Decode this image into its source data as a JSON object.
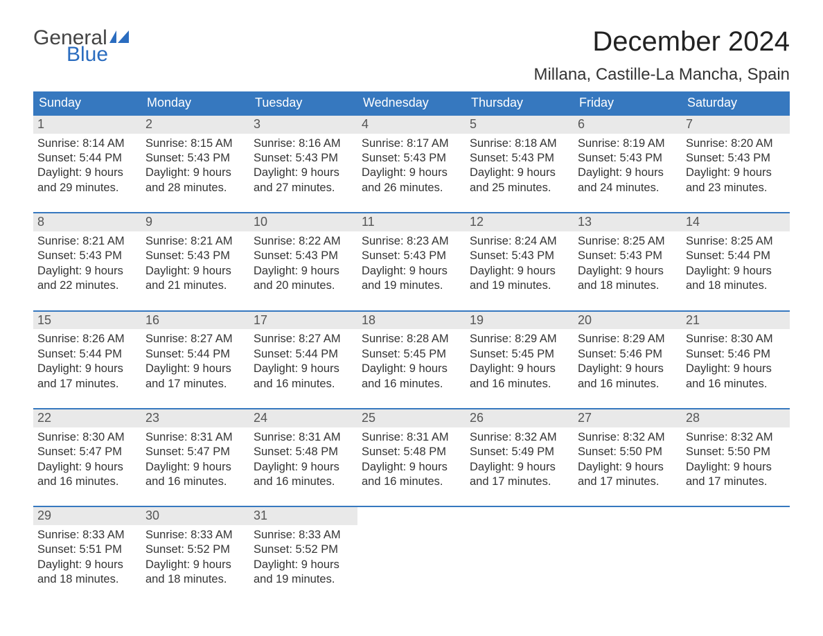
{
  "brand": {
    "part1": "General",
    "part2": "Blue"
  },
  "title": "December 2024",
  "location": "Millana, Castille-La Mancha, Spain",
  "theme": {
    "header_bg": "#3678bf",
    "header_text": "#ffffff",
    "week_rule": "#3678bf",
    "daynum_bg": "#e9e9e9",
    "daynum_text": "#555555",
    "body_text": "#333333",
    "page_bg": "#ffffff",
    "logo_accent": "#2a6cbf"
  },
  "day_headers": [
    "Sunday",
    "Monday",
    "Tuesday",
    "Wednesday",
    "Thursday",
    "Friday",
    "Saturday"
  ],
  "weeks": [
    [
      {
        "day": "1",
        "sunrise": "Sunrise: 8:14 AM",
        "sunset": "Sunset: 5:44 PM",
        "dl1": "Daylight: 9 hours",
        "dl2": "and 29 minutes."
      },
      {
        "day": "2",
        "sunrise": "Sunrise: 8:15 AM",
        "sunset": "Sunset: 5:43 PM",
        "dl1": "Daylight: 9 hours",
        "dl2": "and 28 minutes."
      },
      {
        "day": "3",
        "sunrise": "Sunrise: 8:16 AM",
        "sunset": "Sunset: 5:43 PM",
        "dl1": "Daylight: 9 hours",
        "dl2": "and 27 minutes."
      },
      {
        "day": "4",
        "sunrise": "Sunrise: 8:17 AM",
        "sunset": "Sunset: 5:43 PM",
        "dl1": "Daylight: 9 hours",
        "dl2": "and 26 minutes."
      },
      {
        "day": "5",
        "sunrise": "Sunrise: 8:18 AM",
        "sunset": "Sunset: 5:43 PM",
        "dl1": "Daylight: 9 hours",
        "dl2": "and 25 minutes."
      },
      {
        "day": "6",
        "sunrise": "Sunrise: 8:19 AM",
        "sunset": "Sunset: 5:43 PM",
        "dl1": "Daylight: 9 hours",
        "dl2": "and 24 minutes."
      },
      {
        "day": "7",
        "sunrise": "Sunrise: 8:20 AM",
        "sunset": "Sunset: 5:43 PM",
        "dl1": "Daylight: 9 hours",
        "dl2": "and 23 minutes."
      }
    ],
    [
      {
        "day": "8",
        "sunrise": "Sunrise: 8:21 AM",
        "sunset": "Sunset: 5:43 PM",
        "dl1": "Daylight: 9 hours",
        "dl2": "and 22 minutes."
      },
      {
        "day": "9",
        "sunrise": "Sunrise: 8:21 AM",
        "sunset": "Sunset: 5:43 PM",
        "dl1": "Daylight: 9 hours",
        "dl2": "and 21 minutes."
      },
      {
        "day": "10",
        "sunrise": "Sunrise: 8:22 AM",
        "sunset": "Sunset: 5:43 PM",
        "dl1": "Daylight: 9 hours",
        "dl2": "and 20 minutes."
      },
      {
        "day": "11",
        "sunrise": "Sunrise: 8:23 AM",
        "sunset": "Sunset: 5:43 PM",
        "dl1": "Daylight: 9 hours",
        "dl2": "and 19 minutes."
      },
      {
        "day": "12",
        "sunrise": "Sunrise: 8:24 AM",
        "sunset": "Sunset: 5:43 PM",
        "dl1": "Daylight: 9 hours",
        "dl2": "and 19 minutes."
      },
      {
        "day": "13",
        "sunrise": "Sunrise: 8:25 AM",
        "sunset": "Sunset: 5:43 PM",
        "dl1": "Daylight: 9 hours",
        "dl2": "and 18 minutes."
      },
      {
        "day": "14",
        "sunrise": "Sunrise: 8:25 AM",
        "sunset": "Sunset: 5:44 PM",
        "dl1": "Daylight: 9 hours",
        "dl2": "and 18 minutes."
      }
    ],
    [
      {
        "day": "15",
        "sunrise": "Sunrise: 8:26 AM",
        "sunset": "Sunset: 5:44 PM",
        "dl1": "Daylight: 9 hours",
        "dl2": "and 17 minutes."
      },
      {
        "day": "16",
        "sunrise": "Sunrise: 8:27 AM",
        "sunset": "Sunset: 5:44 PM",
        "dl1": "Daylight: 9 hours",
        "dl2": "and 17 minutes."
      },
      {
        "day": "17",
        "sunrise": "Sunrise: 8:27 AM",
        "sunset": "Sunset: 5:44 PM",
        "dl1": "Daylight: 9 hours",
        "dl2": "and 16 minutes."
      },
      {
        "day": "18",
        "sunrise": "Sunrise: 8:28 AM",
        "sunset": "Sunset: 5:45 PM",
        "dl1": "Daylight: 9 hours",
        "dl2": "and 16 minutes."
      },
      {
        "day": "19",
        "sunrise": "Sunrise: 8:29 AM",
        "sunset": "Sunset: 5:45 PM",
        "dl1": "Daylight: 9 hours",
        "dl2": "and 16 minutes."
      },
      {
        "day": "20",
        "sunrise": "Sunrise: 8:29 AM",
        "sunset": "Sunset: 5:46 PM",
        "dl1": "Daylight: 9 hours",
        "dl2": "and 16 minutes."
      },
      {
        "day": "21",
        "sunrise": "Sunrise: 8:30 AM",
        "sunset": "Sunset: 5:46 PM",
        "dl1": "Daylight: 9 hours",
        "dl2": "and 16 minutes."
      }
    ],
    [
      {
        "day": "22",
        "sunrise": "Sunrise: 8:30 AM",
        "sunset": "Sunset: 5:47 PM",
        "dl1": "Daylight: 9 hours",
        "dl2": "and 16 minutes."
      },
      {
        "day": "23",
        "sunrise": "Sunrise: 8:31 AM",
        "sunset": "Sunset: 5:47 PM",
        "dl1": "Daylight: 9 hours",
        "dl2": "and 16 minutes."
      },
      {
        "day": "24",
        "sunrise": "Sunrise: 8:31 AM",
        "sunset": "Sunset: 5:48 PM",
        "dl1": "Daylight: 9 hours",
        "dl2": "and 16 minutes."
      },
      {
        "day": "25",
        "sunrise": "Sunrise: 8:31 AM",
        "sunset": "Sunset: 5:48 PM",
        "dl1": "Daylight: 9 hours",
        "dl2": "and 16 minutes."
      },
      {
        "day": "26",
        "sunrise": "Sunrise: 8:32 AM",
        "sunset": "Sunset: 5:49 PM",
        "dl1": "Daylight: 9 hours",
        "dl2": "and 17 minutes."
      },
      {
        "day": "27",
        "sunrise": "Sunrise: 8:32 AM",
        "sunset": "Sunset: 5:50 PM",
        "dl1": "Daylight: 9 hours",
        "dl2": "and 17 minutes."
      },
      {
        "day": "28",
        "sunrise": "Sunrise: 8:32 AM",
        "sunset": "Sunset: 5:50 PM",
        "dl1": "Daylight: 9 hours",
        "dl2": "and 17 minutes."
      }
    ],
    [
      {
        "day": "29",
        "sunrise": "Sunrise: 8:33 AM",
        "sunset": "Sunset: 5:51 PM",
        "dl1": "Daylight: 9 hours",
        "dl2": "and 18 minutes."
      },
      {
        "day": "30",
        "sunrise": "Sunrise: 8:33 AM",
        "sunset": "Sunset: 5:52 PM",
        "dl1": "Daylight: 9 hours",
        "dl2": "and 18 minutes."
      },
      {
        "day": "31",
        "sunrise": "Sunrise: 8:33 AM",
        "sunset": "Sunset: 5:52 PM",
        "dl1": "Daylight: 9 hours",
        "dl2": "and 19 minutes."
      },
      null,
      null,
      null,
      null
    ]
  ]
}
